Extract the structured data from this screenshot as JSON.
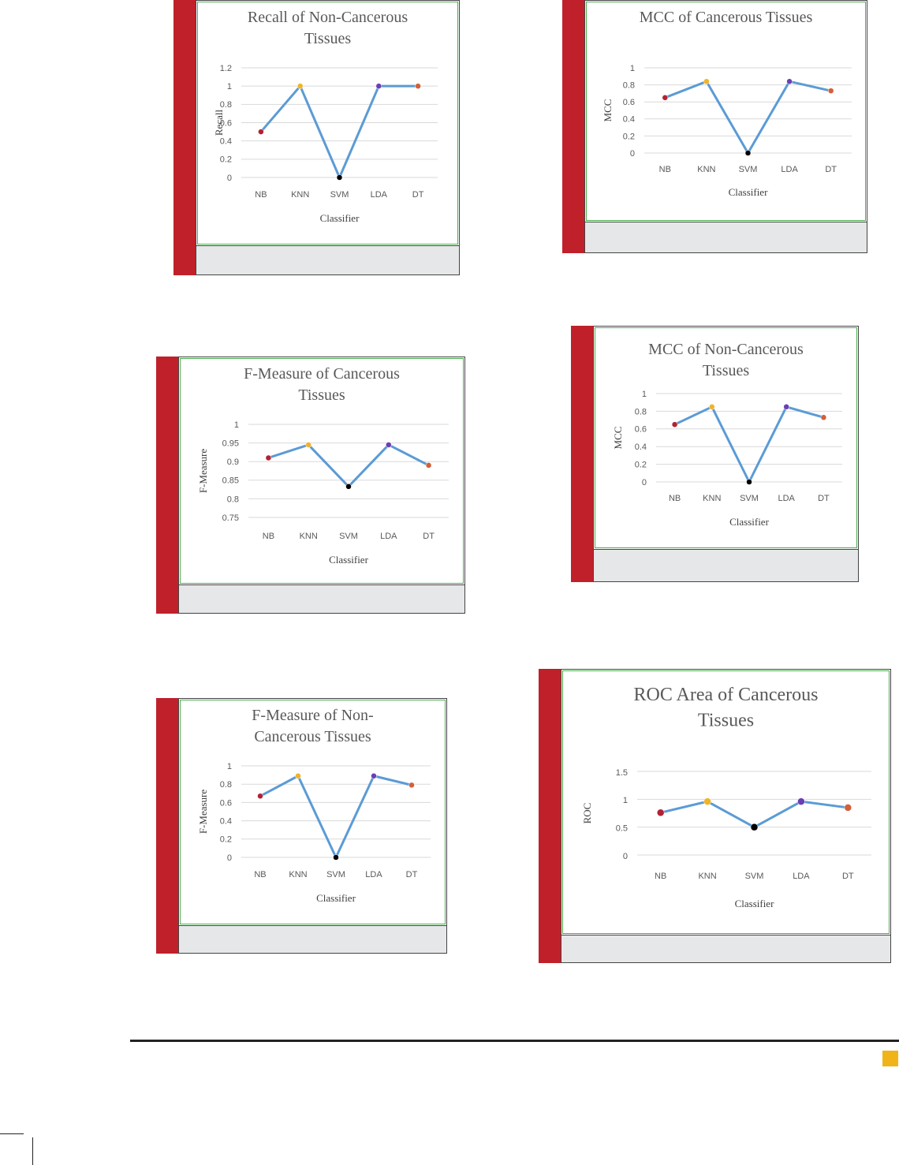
{
  "colors": {
    "line": "#5b9bd5",
    "grid": "#d9d9d9",
    "accent_bar": "#c0202a",
    "marker_NB": "#b22234",
    "marker_KNN": "#f0b429",
    "marker_SVM": "#000000",
    "marker_LDA": "#6a3fb5",
    "marker_DT": "#d2603a"
  },
  "chart_data": [
    {
      "type": "line",
      "title": [
        "Recall of Non-Cancerous",
        "Tissues"
      ],
      "xlabel": "Classifier",
      "ylabel": "Recall",
      "categories": [
        "NB",
        "KNN",
        "SVM",
        "LDA",
        "DT"
      ],
      "values": [
        0.5,
        1.0,
        0.0,
        1.0,
        1.0
      ],
      "yticks": [
        "0",
        "0.2",
        "0.4",
        "0.6",
        "0.8",
        "1",
        "1.2"
      ],
      "ylim": [
        0,
        1.2
      ],
      "grid": true
    },
    {
      "type": "line",
      "title": [
        "MCC of Cancerous Tissues"
      ],
      "xlabel": "Classifier",
      "ylabel": "MCC",
      "categories": [
        "NB",
        "KNN",
        "SVM",
        "LDA",
        "DT"
      ],
      "values": [
        0.65,
        0.84,
        0.0,
        0.84,
        0.73
      ],
      "yticks": [
        "0",
        "0.2",
        "0.4",
        "0.6",
        "0.8",
        "1"
      ],
      "ylim": [
        0,
        1
      ],
      "grid": true
    },
    {
      "type": "line",
      "title": [
        "F-Measure of Cancerous",
        "Tissues"
      ],
      "xlabel": "Classifier",
      "ylabel": "F-Measure",
      "categories": [
        "NB",
        "KNN",
        "SVM",
        "LDA",
        "DT"
      ],
      "values": [
        0.91,
        0.945,
        0.833,
        0.945,
        0.89
      ],
      "yticks": [
        "0.75",
        "0.8",
        "0.85",
        "0.9",
        "0.95",
        "1"
      ],
      "ylim": [
        0.75,
        1
      ],
      "grid": true
    },
    {
      "type": "line",
      "title": [
        "MCC of Non-Cancerous",
        "Tissues"
      ],
      "xlabel": "Classifier",
      "ylabel": "MCC",
      "categories": [
        "NB",
        "KNN",
        "SVM",
        "LDA",
        "DT"
      ],
      "values": [
        0.65,
        0.85,
        0.0,
        0.85,
        0.73
      ],
      "yticks": [
        "0",
        "0.2",
        "0.4",
        "0.6",
        "0.8",
        "1"
      ],
      "ylim": [
        0,
        1
      ],
      "grid": true
    },
    {
      "type": "line",
      "title": [
        "F-Measure of Non-",
        "Cancerous Tissues"
      ],
      "xlabel": "Classifier",
      "ylabel": "F-Measure",
      "categories": [
        "NB",
        "KNN",
        "SVM",
        "LDA",
        "DT"
      ],
      "values": [
        0.67,
        0.89,
        0.0,
        0.89,
        0.79
      ],
      "yticks": [
        "0",
        "0.2",
        "0.4",
        "0.6",
        "0.8",
        "1"
      ],
      "ylim": [
        0,
        1
      ],
      "grid": true
    },
    {
      "type": "line",
      "title": [
        "ROC Area of Cancerous",
        "Tissues"
      ],
      "xlabel": "Classifier",
      "ylabel": "ROC",
      "categories": [
        "NB",
        "KNN",
        "SVM",
        "LDA",
        "DT"
      ],
      "values": [
        0.76,
        0.96,
        0.5,
        0.96,
        0.85
      ],
      "yticks": [
        "0",
        "0.5",
        "1",
        "1.5"
      ],
      "ylim": [
        0,
        1.5
      ],
      "grid": true
    }
  ]
}
